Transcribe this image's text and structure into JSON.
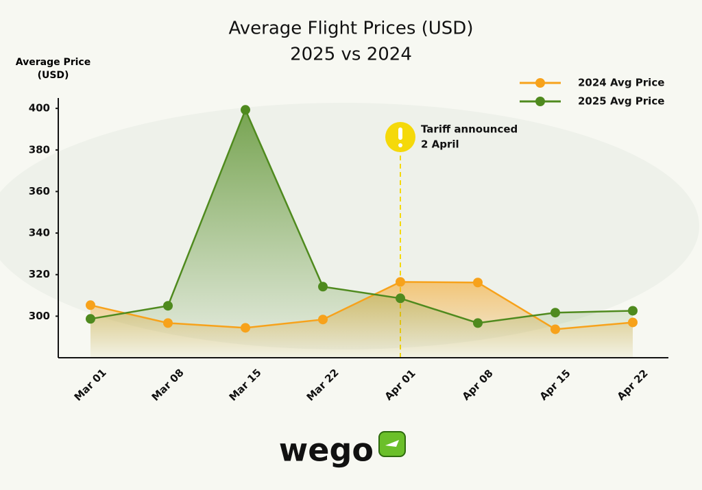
{
  "chart_data": {
    "type": "line",
    "title": "Average Flight Prices (USD)",
    "subtitle": "2025 vs 2024",
    "y_label": "Average Price (USD)",
    "categories": [
      "Mar 01",
      "Mar 08",
      "Mar 15",
      "Mar 22",
      "Apr 01",
      "Apr 08",
      "Apr 15",
      "Apr 22"
    ],
    "series": [
      {
        "name": "2024 Avg Price",
        "color": "#f7a21b",
        "values": [
          305.3,
          296.7,
          294.4,
          298.4,
          316.5,
          316.2,
          293.7,
          297
        ]
      },
      {
        "name": "2025 Avg Price",
        "color": "#4f8a1e",
        "values": [
          298.7,
          305,
          399.3,
          314.2,
          308.6,
          296.7,
          301.7,
          302.6
        ]
      }
    ],
    "ylim": [
      280,
      405
    ],
    "yticks": [
      300,
      320,
      340,
      360,
      380,
      400
    ],
    "legend": "top-right",
    "annotation": {
      "text": [
        "Tariff announced",
        "2 April"
      ],
      "at": "Apr 01",
      "color": "#f5d90a"
    }
  },
  "logo": "wego"
}
